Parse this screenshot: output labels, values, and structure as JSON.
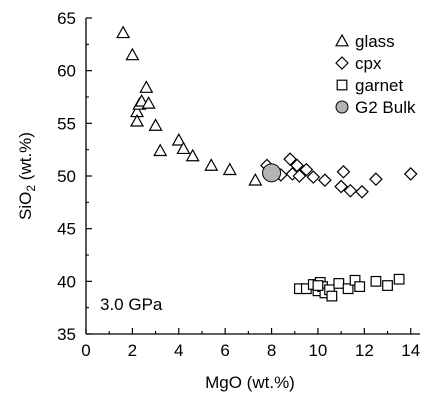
{
  "chart_data": {
    "type": "scatter",
    "xlabel": "MgO (wt.%)",
    "ylabel_main": "SiO",
    "ylabel_sub": "2",
    "ylabel_suffix": " (wt.%)",
    "xlim": [
      0,
      14.4
    ],
    "ylim": [
      35,
      65
    ],
    "xticks": [
      0,
      2,
      4,
      6,
      8,
      10,
      12,
      14
    ],
    "yticks": [
      35,
      40,
      45,
      50,
      55,
      60,
      65
    ],
    "grid": false,
    "legend_position": "top-right",
    "annotation": "3.0 GPa",
    "series": [
      {
        "name": "glass",
        "marker": "triangle",
        "points": [
          [
            1.6,
            63.6
          ],
          [
            2.0,
            61.5
          ],
          [
            2.2,
            56.1
          ],
          [
            2.3,
            56.8
          ],
          [
            2.2,
            55.2
          ],
          [
            2.4,
            57.1
          ],
          [
            2.6,
            58.4
          ],
          [
            2.7,
            56.9
          ],
          [
            3.0,
            54.8
          ],
          [
            3.2,
            52.4
          ],
          [
            4.0,
            53.4
          ],
          [
            4.2,
            52.6
          ],
          [
            4.6,
            51.9
          ],
          [
            5.4,
            51.0
          ],
          [
            6.2,
            50.6
          ],
          [
            7.3,
            49.6
          ]
        ]
      },
      {
        "name": "cpx",
        "marker": "diamond",
        "points": [
          [
            7.8,
            51.0
          ],
          [
            8.4,
            50.1
          ],
          [
            8.8,
            51.6
          ],
          [
            9.1,
            51.0
          ],
          [
            9.5,
            50.6
          ],
          [
            8.9,
            50.2
          ],
          [
            9.2,
            50.0
          ],
          [
            9.8,
            49.9
          ],
          [
            10.3,
            49.6
          ],
          [
            11.1,
            50.4
          ],
          [
            11.0,
            49.0
          ],
          [
            11.4,
            48.6
          ],
          [
            11.9,
            48.5
          ],
          [
            12.5,
            49.7
          ],
          [
            14.0,
            50.2
          ]
        ]
      },
      {
        "name": "garnet",
        "marker": "square",
        "points": [
          [
            9.2,
            39.3
          ],
          [
            9.5,
            39.3
          ],
          [
            9.8,
            39.7
          ],
          [
            10.0,
            39.1
          ],
          [
            10.1,
            39.9
          ],
          [
            10.2,
            39.5
          ],
          [
            10.3,
            38.9
          ],
          [
            10.5,
            39.2
          ],
          [
            10.6,
            38.6
          ],
          [
            10.9,
            39.8
          ],
          [
            11.3,
            39.3
          ],
          [
            11.6,
            40.1
          ],
          [
            11.8,
            39.5
          ],
          [
            12.5,
            40.0
          ],
          [
            13.0,
            39.6
          ],
          [
            13.5,
            40.2
          ],
          [
            10.0,
            39.6
          ]
        ]
      },
      {
        "name": "G2 Bulk",
        "marker": "circle",
        "points": [
          [
            8.0,
            50.3
          ]
        ]
      }
    ]
  },
  "style": {
    "axis_color": "#000000",
    "marker_stroke": "#000000",
    "marker_fill_open": "#ffffff",
    "bulk_fill": "#b4b4b4"
  }
}
